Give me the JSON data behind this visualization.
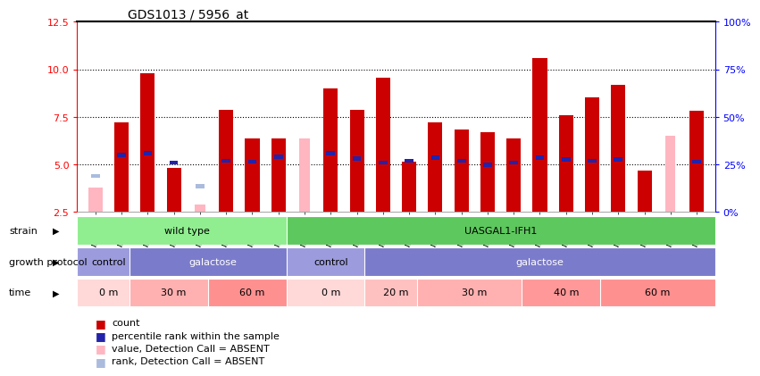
{
  "title": "GDS1013 / 5956_at",
  "samples": [
    "GSM34678",
    "GSM34681",
    "GSM34684",
    "GSM34679",
    "GSM34682",
    "GSM34685",
    "GSM34680",
    "GSM34683",
    "GSM34686",
    "GSM34687",
    "GSM34692",
    "GSM34697",
    "GSM34688",
    "GSM34693",
    "GSM34698",
    "GSM34689",
    "GSM34694",
    "GSM34699",
    "GSM34690",
    "GSM34695",
    "GSM34700",
    "GSM34691",
    "GSM34696",
    "GSM34701"
  ],
  "red_bars": [
    3.8,
    7.2,
    9.8,
    4.8,
    null,
    7.85,
    6.35,
    6.35,
    null,
    9.0,
    7.85,
    9.55,
    5.15,
    7.2,
    6.85,
    6.7,
    6.35,
    10.6,
    7.6,
    8.55,
    9.2,
    4.7,
    null,
    7.8
  ],
  "pink_bars": [
    3.8,
    null,
    null,
    null,
    2.9,
    null,
    null,
    null,
    6.35,
    null,
    null,
    null,
    null,
    null,
    null,
    null,
    null,
    null,
    null,
    null,
    null,
    null,
    6.5,
    null
  ],
  "blue_markers": [
    null,
    5.5,
    5.6,
    5.1,
    null,
    5.2,
    5.15,
    5.4,
    null,
    5.6,
    5.3,
    5.1,
    5.2,
    5.35,
    5.2,
    5.0,
    5.1,
    5.35,
    5.25,
    5.2,
    5.25,
    null,
    null,
    5.15
  ],
  "light_blue_markers": [
    4.4,
    null,
    null,
    null,
    3.85,
    null,
    null,
    null,
    null,
    null,
    null,
    null,
    null,
    null,
    null,
    null,
    null,
    null,
    null,
    null,
    null,
    null,
    null,
    null
  ],
  "absent_red": [
    true,
    false,
    false,
    false,
    true,
    false,
    false,
    false,
    true,
    false,
    false,
    false,
    false,
    false,
    false,
    false,
    false,
    false,
    false,
    false,
    false,
    false,
    true,
    false
  ],
  "ylim": [
    2.5,
    12.5
  ],
  "yticks_left": [
    2.5,
    5.0,
    7.5,
    10.0,
    12.5
  ],
  "ytick_labels_right": [
    "0%",
    "25%",
    "50%",
    "75%",
    "100%"
  ],
  "right_tick_vals": [
    2.5,
    5.0,
    7.5,
    10.0,
    12.5
  ],
  "dotted_lines": [
    5.0,
    7.5,
    10.0
  ],
  "strain_groups": [
    {
      "label": "wild type",
      "start": 0,
      "end": 8,
      "color": "#90EE90"
    },
    {
      "label": "UASGAL1-IFH1",
      "start": 8,
      "end": 24,
      "color": "#5DC85D"
    }
  ],
  "protocol_groups": [
    {
      "label": "control",
      "start": 0,
      "end": 2,
      "color": "#9B9BDD"
    },
    {
      "label": "galactose",
      "start": 2,
      "end": 8,
      "color": "#7B7BCC"
    },
    {
      "label": "control",
      "start": 8,
      "end": 11,
      "color": "#9B9BDD"
    },
    {
      "label": "galactose",
      "start": 11,
      "end": 24,
      "color": "#7B7BCC"
    }
  ],
  "time_groups": [
    {
      "label": "0 m",
      "start": 0,
      "end": 2,
      "color": "#FFD8D8"
    },
    {
      "label": "30 m",
      "start": 2,
      "end": 5,
      "color": "#FFB0B0"
    },
    {
      "label": "60 m",
      "start": 5,
      "end": 8,
      "color": "#FF9090"
    },
    {
      "label": "0 m",
      "start": 8,
      "end": 11,
      "color": "#FFD8D8"
    },
    {
      "label": "20 m",
      "start": 11,
      "end": 13,
      "color": "#FFC0C0"
    },
    {
      "label": "30 m",
      "start": 13,
      "end": 17,
      "color": "#FFB0B0"
    },
    {
      "label": "40 m",
      "start": 17,
      "end": 20,
      "color": "#FF9898"
    },
    {
      "label": "60 m",
      "start": 20,
      "end": 24,
      "color": "#FF9090"
    }
  ],
  "bar_width": 0.55,
  "red_color": "#CC0000",
  "pink_color": "#FFB6C1",
  "blue_color": "#2222AA",
  "light_blue_color": "#AABBDD"
}
